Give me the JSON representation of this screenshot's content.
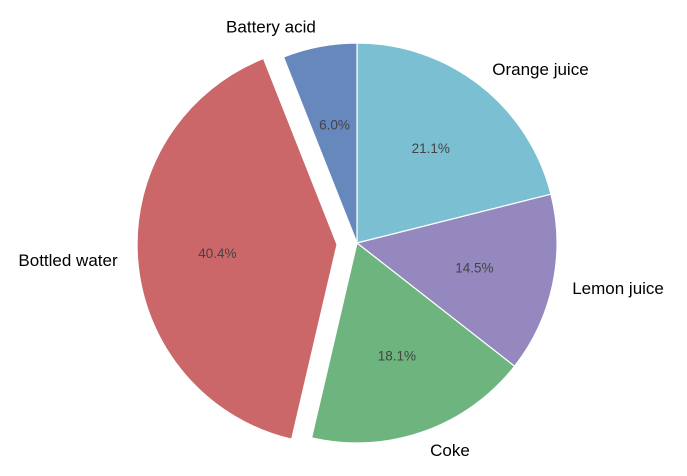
{
  "chart_data": {
    "type": "pie",
    "categories": [
      "Orange juice",
      "Lemon juice",
      "Coke",
      "Bottled water",
      "Battery acid"
    ],
    "values": [
      21.1,
      14.5,
      18.1,
      40.4,
      6.0
    ],
    "percent_labels": [
      "21.1%",
      "14.5%",
      "18.1%",
      "40.4%",
      "6.0%"
    ],
    "colors": [
      "#7bbfd3",
      "#9488be",
      "#6eb47e",
      "#cb6769",
      "#6688bd"
    ],
    "explode": [
      0,
      0,
      0,
      0.1,
      0
    ],
    "start_angle": 90,
    "direction": "clockwise"
  }
}
